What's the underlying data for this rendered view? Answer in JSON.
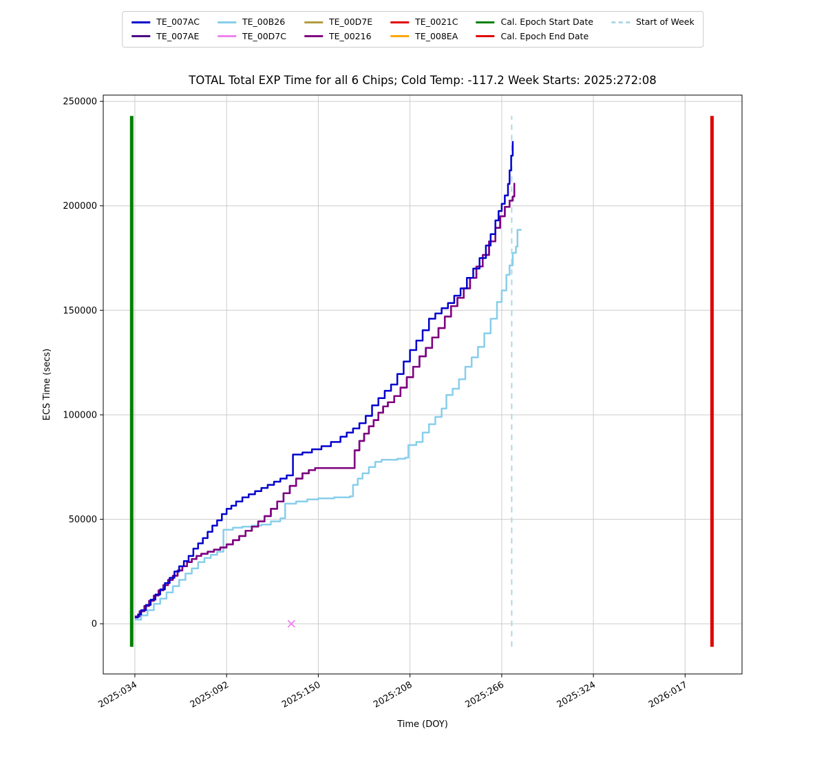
{
  "figure": {
    "title": "TOTAL Total EXP Time for all 6 Chips; Cold Temp: -117.2 Week Starts: 2025:272:08",
    "xlabel": "Time (DOY)",
    "ylabel": "ECS Time (secs)"
  },
  "legend": {
    "columns": [
      [
        {
          "label": "TE_007AC",
          "color": "#0000cc",
          "dash": false
        },
        {
          "label": "TE_007AE",
          "color": "#4b0082",
          "dash": false
        }
      ],
      [
        {
          "label": "TE_00B26",
          "color": "#87ceeb",
          "dash": false
        },
        {
          "label": "TE_00D7C",
          "color": "#ee82ee",
          "dash": false
        }
      ],
      [
        {
          "label": "TE_00D7E",
          "color": "#b39b3f",
          "dash": false
        },
        {
          "label": "TE_00216",
          "color": "#800080",
          "dash": false
        }
      ],
      [
        {
          "label": "TE_0021C",
          "color": "#e00000",
          "dash": false
        },
        {
          "label": "TE_008EA",
          "color": "#ffa500",
          "dash": false
        }
      ],
      [
        {
          "label": "Cal. Epoch Start Date",
          "color": "#008000",
          "dash": false
        },
        {
          "label": "Cal. Epoch End Date",
          "color": "#e00000",
          "dash": false
        }
      ],
      [
        {
          "label": "Start of Week",
          "color": "#add8e6",
          "dash": true
        }
      ]
    ]
  },
  "chart_data": {
    "type": "line",
    "title": "TOTAL Total EXP Time for all 6 Chips; Cold Temp: -117.2 Week Starts: 2025:272:08",
    "xlabel": "Time (DOY)",
    "ylabel": "ECS Time (secs)",
    "grid": true,
    "legend_position": "top",
    "xlim_days": [
      14,
      418
    ],
    "ylim": [
      -24000,
      253000
    ],
    "x_ticks": [
      {
        "day": 34,
        "label": "2025:034"
      },
      {
        "day": 92,
        "label": "2025:092"
      },
      {
        "day": 150,
        "label": "2025:150"
      },
      {
        "day": 208,
        "label": "2025:208"
      },
      {
        "day": 266,
        "label": "2025:266"
      },
      {
        "day": 324,
        "label": "2025:324"
      },
      {
        "day": 382,
        "label": "2026:017"
      }
    ],
    "y_ticks": [
      0,
      50000,
      100000,
      150000,
      200000,
      250000
    ],
    "vlines": [
      {
        "name": "cal-epoch-start",
        "label": "Cal. Epoch Start Date",
        "day": 32,
        "color": "#008000",
        "y0": -11000,
        "y1": 243000,
        "width": 5,
        "dash": false
      },
      {
        "name": "start-of-week",
        "label": "Start of Week",
        "day": 272.33,
        "color": "#add8e6",
        "y0": -11000,
        "y1": 243000,
        "width": 2,
        "dash": true
      },
      {
        "name": "cal-epoch-end",
        "label": "Cal. Epoch End Date",
        "day": 399,
        "color": "#e00000",
        "y0": -11000,
        "y1": 243000,
        "width": 5,
        "dash": false
      }
    ],
    "series": [
      {
        "name": "TE_00B26",
        "color": "#87ceeb",
        "style": "step",
        "points": [
          [
            34,
            2000
          ],
          [
            38,
            4000
          ],
          [
            42,
            6500
          ],
          [
            46,
            9500
          ],
          [
            50,
            12000
          ],
          [
            54,
            15000
          ],
          [
            58,
            18000
          ],
          [
            62,
            21000
          ],
          [
            66,
            24000
          ],
          [
            70,
            26500
          ],
          [
            74,
            29500
          ],
          [
            78,
            31500
          ],
          [
            82,
            33000
          ],
          [
            86,
            34500
          ],
          [
            90,
            45000
          ],
          [
            96,
            46000
          ],
          [
            102,
            46500
          ],
          [
            108,
            47000
          ],
          [
            114,
            47500
          ],
          [
            120,
            49000
          ],
          [
            126,
            50500
          ],
          [
            129,
            57500
          ],
          [
            136,
            58500
          ],
          [
            143,
            59500
          ],
          [
            150,
            60000
          ],
          [
            160,
            60500
          ],
          [
            170,
            61000
          ],
          [
            172,
            66500
          ],
          [
            175,
            69500
          ],
          [
            178,
            72000
          ],
          [
            182,
            75000
          ],
          [
            186,
            77500
          ],
          [
            190,
            78500
          ],
          [
            200,
            79000
          ],
          [
            205,
            79500
          ],
          [
            207,
            85500
          ],
          [
            212,
            87000
          ],
          [
            216,
            91500
          ],
          [
            220,
            95500
          ],
          [
            224,
            99000
          ],
          [
            228,
            103000
          ],
          [
            231,
            109500
          ],
          [
            235,
            112500
          ],
          [
            239,
            117000
          ],
          [
            243,
            123000
          ],
          [
            247,
            127500
          ],
          [
            251,
            132500
          ],
          [
            255,
            139000
          ],
          [
            259,
            146000
          ],
          [
            263,
            154000
          ],
          [
            266,
            159500
          ],
          [
            269,
            167000
          ],
          [
            271,
            171500
          ],
          [
            273,
            177500
          ],
          [
            275,
            180500
          ],
          [
            276,
            188500
          ],
          [
            278,
            189000
          ]
        ]
      },
      {
        "name": "TE_007AE",
        "color": "#4b0082",
        "style": "step",
        "points": [
          [
            34,
            3500
          ],
          [
            37,
            6000
          ],
          [
            40,
            8500
          ],
          [
            43,
            11000
          ],
          [
            46,
            13500
          ],
          [
            49,
            16000
          ],
          [
            52,
            18500
          ],
          [
            55,
            21000
          ],
          [
            58,
            23000
          ],
          [
            61,
            25500
          ],
          [
            64,
            27500
          ],
          [
            67,
            29500
          ],
          [
            70,
            31000
          ],
          [
            73,
            32500
          ],
          [
            76,
            33500
          ],
          [
            80,
            34500
          ],
          [
            84,
            35500
          ],
          [
            88,
            36500
          ],
          [
            92,
            38000
          ],
          [
            96,
            40000
          ],
          [
            100,
            42000
          ],
          [
            104,
            44500
          ],
          [
            108,
            46500
          ],
          [
            112,
            49000
          ],
          [
            116,
            51500
          ],
          [
            120,
            55000
          ],
          [
            124,
            58500
          ],
          [
            128,
            62500
          ],
          [
            132,
            66000
          ],
          [
            136,
            69500
          ],
          [
            140,
            72000
          ],
          [
            144,
            73500
          ],
          [
            148,
            74500
          ],
          [
            170,
            74500
          ],
          [
            173,
            83000
          ],
          [
            176,
            87500
          ],
          [
            179,
            91000
          ],
          [
            182,
            94500
          ],
          [
            185,
            97500
          ],
          [
            188,
            101000
          ],
          [
            191,
            104000
          ],
          [
            194,
            106000
          ],
          [
            198,
            109000
          ],
          [
            202,
            113000
          ],
          [
            206,
            118000
          ],
          [
            210,
            123000
          ],
          [
            214,
            128000
          ],
          [
            218,
            132000
          ],
          [
            222,
            137000
          ],
          [
            226,
            141500
          ],
          [
            230,
            147000
          ],
          [
            234,
            152000
          ],
          [
            238,
            156000
          ],
          [
            242,
            160500
          ],
          [
            246,
            165500
          ],
          [
            250,
            171000
          ],
          [
            254,
            176500
          ],
          [
            258,
            183000
          ],
          [
            262,
            189500
          ],
          [
            265,
            195000
          ],
          [
            268,
            199500
          ],
          [
            271,
            202500
          ],
          [
            273,
            204500
          ],
          [
            274,
            207500
          ]
        ]
      },
      {
        "name": "TE_00216",
        "color": "#800080",
        "style": "step",
        "points": [
          [
            34,
            3500
          ],
          [
            37,
            6000
          ],
          [
            40,
            8500
          ],
          [
            43,
            11000
          ],
          [
            46,
            13500
          ],
          [
            49,
            16000
          ],
          [
            52,
            18500
          ],
          [
            55,
            21000
          ],
          [
            58,
            23000
          ],
          [
            61,
            25500
          ],
          [
            64,
            27500
          ],
          [
            67,
            29500
          ],
          [
            70,
            31000
          ],
          [
            73,
            32500
          ],
          [
            76,
            33500
          ],
          [
            80,
            34500
          ],
          [
            84,
            35500
          ],
          [
            88,
            36500
          ],
          [
            92,
            38000
          ],
          [
            96,
            40000
          ],
          [
            100,
            42000
          ],
          [
            104,
            44500
          ],
          [
            108,
            46500
          ],
          [
            112,
            49000
          ],
          [
            116,
            51500
          ],
          [
            120,
            55000
          ],
          [
            124,
            58500
          ],
          [
            128,
            62500
          ],
          [
            132,
            66000
          ],
          [
            136,
            69500
          ],
          [
            140,
            72000
          ],
          [
            144,
            73500
          ],
          [
            148,
            74500
          ],
          [
            170,
            74500
          ],
          [
            173,
            83000
          ],
          [
            176,
            87500
          ],
          [
            179,
            91000
          ],
          [
            182,
            94500
          ],
          [
            185,
            97500
          ],
          [
            188,
            101000
          ],
          [
            191,
            104000
          ],
          [
            194,
            106000
          ],
          [
            198,
            109000
          ],
          [
            202,
            113000
          ],
          [
            206,
            118000
          ],
          [
            210,
            123000
          ],
          [
            214,
            128000
          ],
          [
            218,
            132000
          ],
          [
            222,
            137000
          ],
          [
            226,
            141500
          ],
          [
            230,
            147000
          ],
          [
            234,
            152000
          ],
          [
            238,
            156000
          ],
          [
            242,
            160500
          ],
          [
            246,
            165500
          ],
          [
            250,
            171000
          ],
          [
            254,
            176500
          ],
          [
            258,
            183000
          ],
          [
            262,
            189500
          ],
          [
            265,
            195000
          ],
          [
            268,
            199500
          ],
          [
            271,
            202500
          ],
          [
            273,
            204500
          ],
          [
            274,
            211000
          ]
        ]
      },
      {
        "name": "TE_007AC",
        "color": "#0000cc",
        "style": "step",
        "points": [
          [
            34,
            3000
          ],
          [
            36,
            4500
          ],
          [
            38,
            6500
          ],
          [
            41,
            9000
          ],
          [
            44,
            11500
          ],
          [
            47,
            14000
          ],
          [
            50,
            16500
          ],
          [
            53,
            19500
          ],
          [
            56,
            22000
          ],
          [
            59,
            25000
          ],
          [
            62,
            27500
          ],
          [
            65,
            30000
          ],
          [
            68,
            32500
          ],
          [
            71,
            36000
          ],
          [
            74,
            38500
          ],
          [
            77,
            41000
          ],
          [
            80,
            44000
          ],
          [
            83,
            47000
          ],
          [
            86,
            49500
          ],
          [
            89,
            52500
          ],
          [
            92,
            55000
          ],
          [
            95,
            56500
          ],
          [
            98,
            58500
          ],
          [
            102,
            60500
          ],
          [
            106,
            62000
          ],
          [
            110,
            63500
          ],
          [
            114,
            65000
          ],
          [
            118,
            66500
          ],
          [
            122,
            68000
          ],
          [
            126,
            69500
          ],
          [
            130,
            71000
          ],
          [
            134,
            81000
          ],
          [
            140,
            82000
          ],
          [
            146,
            83500
          ],
          [
            152,
            85000
          ],
          [
            158,
            87000
          ],
          [
            164,
            89500
          ],
          [
            168,
            91500
          ],
          [
            172,
            93500
          ],
          [
            176,
            96000
          ],
          [
            180,
            99500
          ],
          [
            184,
            104500
          ],
          [
            188,
            108000
          ],
          [
            192,
            111500
          ],
          [
            196,
            114500
          ],
          [
            200,
            119500
          ],
          [
            204,
            125500
          ],
          [
            208,
            131000
          ],
          [
            212,
            135500
          ],
          [
            216,
            140500
          ],
          [
            220,
            146000
          ],
          [
            224,
            148500
          ],
          [
            228,
            151000
          ],
          [
            232,
            153500
          ],
          [
            236,
            157000
          ],
          [
            240,
            160500
          ],
          [
            244,
            165500
          ],
          [
            248,
            170000
          ],
          [
            252,
            175000
          ],
          [
            256,
            181000
          ],
          [
            259,
            186500
          ],
          [
            262,
            193000
          ],
          [
            264,
            197500
          ],
          [
            266,
            201000
          ],
          [
            268,
            205000
          ],
          [
            270,
            210500
          ],
          [
            271,
            217000
          ],
          [
            272,
            224000
          ],
          [
            273,
            231000
          ]
        ]
      },
      {
        "name": "TE_00D7C",
        "color": "#ee82ee",
        "style": "marker-x",
        "points": [
          [
            133,
            0
          ]
        ]
      },
      {
        "name": "TE_00D7E",
        "color": "#b39b3f",
        "style": "step",
        "points": []
      },
      {
        "name": "TE_0021C",
        "color": "#e00000",
        "style": "step",
        "points": []
      },
      {
        "name": "TE_008EA",
        "color": "#ffa500",
        "style": "step",
        "points": []
      }
    ]
  }
}
